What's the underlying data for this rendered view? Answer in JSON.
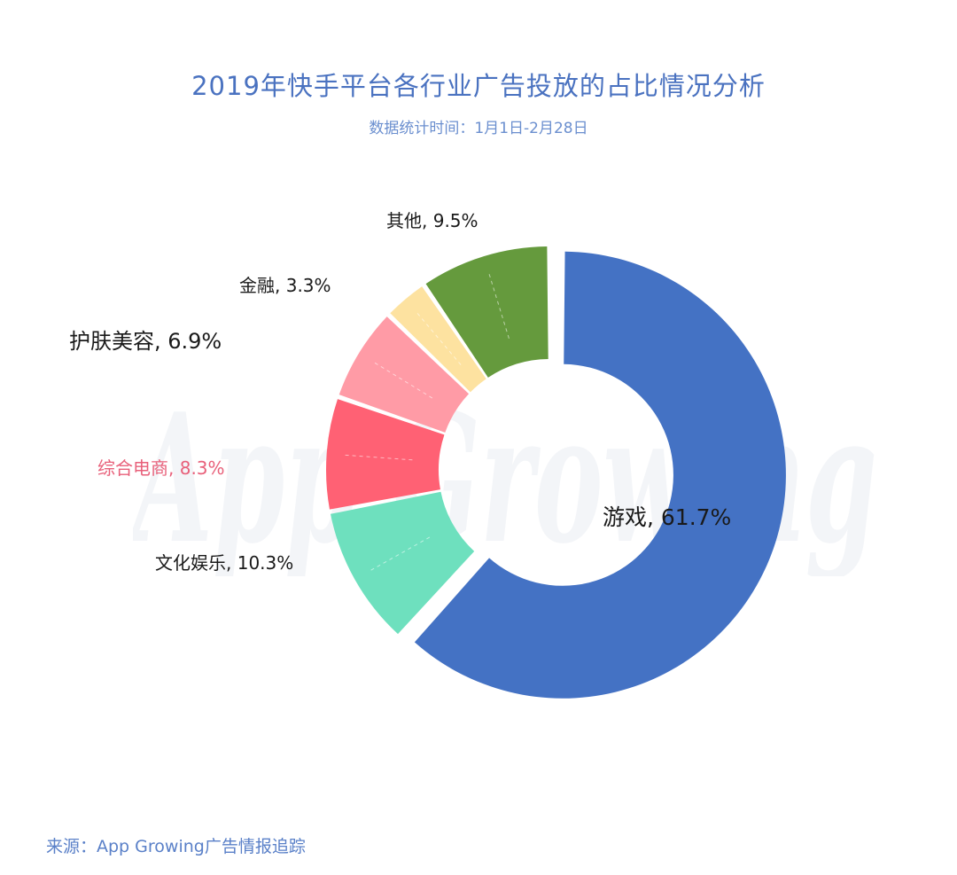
{
  "header": {
    "title": "2019年快手平台各行业广告投放的占比情况分析",
    "subtitle": "数据统计时间：1月1日-2月28日"
  },
  "footer": {
    "source": "来源：App Growing广告情报追踪"
  },
  "watermark": {
    "text": "App Growing"
  },
  "chart_data": {
    "type": "pie",
    "variant": "donut",
    "title": "2019年快手平台各行业广告投放的占比情况分析",
    "subtitle": "数据统计时间：1月1日-2月28日",
    "slices": [
      {
        "name": "游戏",
        "value": 61.7,
        "label": "游戏, 61.7%",
        "color": "#4472c4",
        "exploded": true
      },
      {
        "name": "文化娱乐",
        "value": 10.3,
        "label": "文化娱乐, 10.3%",
        "color": "#6ee0be"
      },
      {
        "name": "综合电商",
        "value": 8.3,
        "label": "综合电商, 8.3%",
        "color": "#ff6174",
        "label_color": "#e8607a"
      },
      {
        "name": "护肤美容",
        "value": 6.9,
        "label": "护肤美容, 6.9%",
        "color": "#ff9ba6"
      },
      {
        "name": "金融",
        "value": 3.3,
        "label": "金融, 3.3%",
        "color": "#fde2a0"
      },
      {
        "name": "其他",
        "value": 9.5,
        "label": "其他, 9.5%",
        "color": "#659a3d"
      }
    ],
    "legend": "none"
  }
}
